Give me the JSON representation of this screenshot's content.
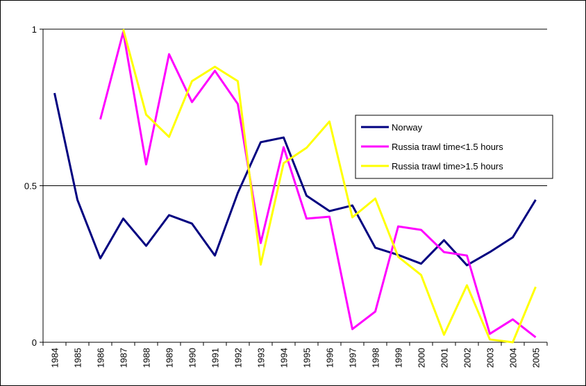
{
  "chart_data": {
    "type": "line",
    "categories": [
      "1984",
      "1985",
      "1986",
      "1987",
      "1988",
      "1989",
      "1990",
      "1991",
      "1992",
      "1993",
      "1994",
      "1995",
      "1996",
      "1997",
      "1998",
      "1999",
      "2000",
      "2001",
      "2002",
      "2003",
      "2004",
      "2005"
    ],
    "series": [
      {
        "name": "Norway",
        "color": "#000080",
        "values": [
          0.796,
          0.455,
          0.268,
          0.395,
          0.308,
          0.406,
          0.379,
          0.277,
          0.477,
          0.639,
          0.654,
          0.468,
          0.419,
          0.437,
          0.302,
          0.279,
          0.251,
          0.326,
          0.246,
          0.288,
          0.335,
          0.455
        ]
      },
      {
        "name": "Russia trawl time<1.5 hours",
        "color": "#ff00ff",
        "values": [
          null,
          null,
          0.712,
          0.991,
          0.568,
          0.92,
          0.767,
          0.867,
          0.761,
          0.317,
          0.623,
          0.395,
          0.401,
          0.042,
          0.098,
          0.37,
          0.359,
          0.288,
          0.277,
          0.027,
          0.073,
          0.016
        ]
      },
      {
        "name": "Russia trawl time>1.5 hours",
        "color": "#ffff00",
        "values": [
          null,
          null,
          null,
          1.0,
          0.727,
          0.656,
          0.834,
          0.88,
          0.834,
          0.248,
          0.572,
          0.621,
          0.705,
          0.399,
          0.459,
          0.273,
          0.215,
          0.024,
          0.182,
          0.009,
          0,
          0.177
        ]
      }
    ],
    "ylim": [
      0,
      1
    ],
    "yticks": [
      0,
      0.5,
      1
    ],
    "grid": true,
    "legend": "right"
  }
}
